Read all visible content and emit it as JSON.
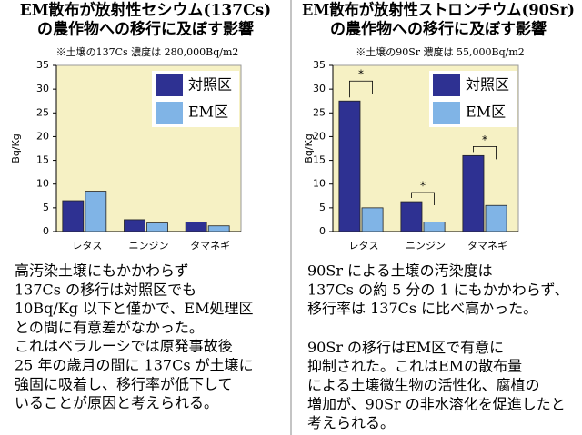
{
  "chart_data": [
    {
      "type": "bar",
      "title": [
        "EM散布が放射性セシウム(137Cs)",
        "の農作物への移行に及ぼす影響"
      ],
      "subtitle": "※土壌の137Cs 濃度は 280,000Bq/m2",
      "y_label": "Bq/Kg",
      "categories": [
        "レタス",
        "ニンジン",
        "タマネギ"
      ],
      "series": [
        {
          "name": "対照区",
          "color": "#2e3192",
          "values": [
            6.5,
            2.5,
            2.0
          ]
        },
        {
          "name": "EM区",
          "color": "#80b4e6",
          "values": [
            8.5,
            1.8,
            1.2
          ]
        }
      ],
      "ylim": [
        0,
        35
      ],
      "yticks": [
        0,
        5,
        10,
        15,
        20,
        25,
        30,
        35
      ],
      "annotations": []
    },
    {
      "type": "bar",
      "title": [
        "EM散布が放射性ストロンチウム(90Sr)",
        "の農作物への移行に及ぼす影響"
      ],
      "subtitle": "※土壌の90Sr 濃度は 55,000Bq/m2",
      "y_label": "Bq/Kg",
      "categories": [
        "レタス",
        "ニンジン",
        "タマネギ"
      ],
      "series": [
        {
          "name": "対照区",
          "color": "#2e3192",
          "values": [
            27.5,
            6.3,
            16.0
          ]
        },
        {
          "name": "EM区",
          "color": "#80b4e6",
          "values": [
            5.0,
            2.0,
            5.5
          ]
        }
      ],
      "ylim": [
        0,
        35
      ],
      "yticks": [
        0,
        5,
        10,
        15,
        20,
        25,
        30,
        35
      ],
      "annotations": [
        "*",
        "*",
        "*"
      ]
    }
  ],
  "captions": [
    [
      [
        "高汚染土壌にもかかわらず",
        "137Cs の移行は対照区でも",
        "10Bq/Kg 以下と僅かで、EM処理区",
        "との間に有意差がなかった。",
        "これはベラルーシでは原発事故後",
        "25 年の歳月の間に 137Cs が土壌に",
        "強固に吸着し、移行率が低下して",
        "いることが原因と考えられる。"
      ]
    ],
    [
      [
        "90Sr による土壌の汚染度は",
        "137Cs の約 5 分の 1 にもかかわらず、",
        "移行率は 137Cs に比べ高かった。"
      ],
      [
        "90Sr の移行はEM区で有意に",
        "抑制された。これはEMの散布量",
        "による土壌微生物の活性化、腐植の",
        "増加が、90Sr の非水溶化を促進したと",
        "考えられる。"
      ]
    ]
  ]
}
